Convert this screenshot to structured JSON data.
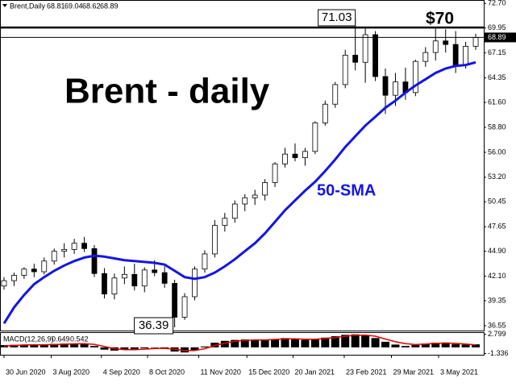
{
  "chart_data": {
    "type": "candlestick",
    "header": {
      "symbol": "Brent,Daily",
      "open": 68.81,
      "high": 69.04,
      "low": 68.62,
      "close": 68.89
    },
    "title": "Brent - daily",
    "open": [
      41.0,
      41.6,
      42.2,
      42.9,
      42.6,
      43.8,
      44.9,
      45.1,
      45.8,
      45.2,
      42.4,
      40.1,
      41.9,
      42.3,
      41.0,
      42.8,
      42.5,
      41.3,
      37.5,
      39.8,
      42.9,
      44.6,
      47.8,
      48.6,
      50.2,
      50.9,
      51.2,
      52.6,
      54.7,
      55.8,
      55.4,
      56.1,
      59.3,
      61.4,
      63.6,
      66.9,
      66.1,
      69.2,
      64.5,
      62.4,
      63.9,
      62.7,
      66.2,
      67.2,
      68.5,
      68.1,
      65.8,
      67.9
    ],
    "high": [
      42.0,
      42.5,
      43.1,
      43.5,
      44.2,
      45.2,
      45.8,
      46.3,
      46.5,
      45.6,
      43.0,
      42.4,
      43.2,
      43.5,
      43.1,
      43.9,
      43.2,
      41.7,
      40.2,
      43.2,
      45.0,
      48.4,
      49.2,
      50.6,
      51.3,
      51.8,
      53.0,
      54.9,
      56.5,
      57.0,
      56.5,
      59.5,
      61.8,
      63.9,
      67.5,
      71.03,
      70.0,
      69.6,
      65.4,
      64.9,
      65.5,
      66.4,
      67.8,
      69.9,
      69.8,
      69.6,
      68.4,
      69.3
    ],
    "low": [
      40.6,
      41.0,
      41.8,
      42.0,
      42.3,
      43.4,
      44.2,
      44.6,
      44.8,
      42.0,
      39.6,
      39.5,
      41.2,
      40.5,
      40.3,
      42.1,
      40.8,
      36.39,
      37.2,
      39.4,
      42.5,
      44.2,
      47.1,
      48.1,
      49.4,
      50.1,
      50.6,
      52.1,
      54.3,
      55.0,
      54.5,
      55.8,
      59.0,
      61.0,
      63.2,
      65.2,
      63.8,
      64.0,
      60.3,
      61.2,
      61.9,
      62.3,
      65.6,
      66.3,
      67.2,
      64.9,
      65.4,
      67.5
    ],
    "close": [
      41.6,
      42.2,
      42.9,
      42.6,
      43.8,
      44.9,
      45.1,
      45.8,
      45.2,
      42.4,
      40.1,
      41.9,
      42.3,
      41.0,
      42.8,
      42.5,
      41.3,
      37.5,
      39.8,
      42.9,
      44.6,
      47.8,
      48.6,
      50.2,
      50.9,
      51.2,
      52.6,
      54.7,
      55.8,
      55.4,
      56.1,
      59.3,
      61.4,
      63.6,
      66.9,
      66.1,
      69.2,
      64.5,
      62.4,
      63.9,
      62.7,
      66.2,
      67.2,
      68.5,
      68.1,
      65.8,
      67.9,
      68.89
    ],
    "sma": {
      "name": "50-SMA",
      "color": "#1414e6",
      "values": [
        36.8,
        38.6,
        40.0,
        41.2,
        42.0,
        42.7,
        43.3,
        43.8,
        44.2,
        44.4,
        44.3,
        44.1,
        43.9,
        43.8,
        43.7,
        43.6,
        43.4,
        42.7,
        42.0,
        41.8,
        42.0,
        42.5,
        43.2,
        44.0,
        44.9,
        45.8,
        46.9,
        48.2,
        49.5,
        50.6,
        51.7,
        52.7,
        53.9,
        55.2,
        56.6,
        57.8,
        59.0,
        60.0,
        61.0,
        61.8,
        62.7,
        63.5,
        64.2,
        64.9,
        65.4,
        65.7,
        65.8,
        66.1
      ]
    },
    "level": {
      "value": 70,
      "label": "$70"
    },
    "peak": 71.03,
    "trough": 36.39,
    "xlim": [
      -0.4,
      47.8
    ],
    "xticks": [
      {
        "value": 0,
        "label": "30 Jun 2020"
      },
      {
        "value": 4.7,
        "label": "3 Aug 2020"
      },
      {
        "value": 9.7,
        "label": "4 Sep 2020"
      },
      {
        "value": 14.3,
        "label": "8 Oct 2020"
      },
      {
        "value": 19.4,
        "label": "11 Nov 2020"
      },
      {
        "value": 24.2,
        "label": "15 Dec 2020"
      },
      {
        "value": 28.8,
        "label": "20 Jan 2021"
      },
      {
        "value": 33.9,
        "label": "23 Feb 2021"
      },
      {
        "value": 38.6,
        "label": "29 Mar 2021"
      },
      {
        "value": 43.3,
        "label": "3 May 2021"
      }
    ],
    "ylim": [
      36.0,
      73.0
    ],
    "yticks": [
      {
        "value": 72.7,
        "label": "72.70"
      },
      69.95,
      67.15,
      64.35,
      {
        "value": 61.6,
        "label": "61.60"
      },
      {
        "value": 58.8,
        "label": "58.80"
      },
      {
        "value": 56,
        "label": "56.00"
      },
      {
        "value": 53.2,
        "label": "53.20"
      },
      50.45,
      47.65,
      {
        "value": 44.9,
        "label": "44.90"
      },
      {
        "value": 42.1,
        "label": "42.10"
      },
      39.35,
      36.55
    ],
    "macd": {
      "title": "MACD(12,26,9)",
      "color": "#000000",
      "histogram": [
        0.5,
        0.55,
        0.6,
        0.55,
        0.6,
        0.75,
        0.8,
        0.85,
        0.8,
        0.3,
        -0.5,
        -0.7,
        -0.5,
        -0.4,
        -0.2,
        0.0,
        -0.2,
        -0.9,
        -1.1,
        -0.6,
        0.2,
        1.0,
        1.4,
        1.6,
        1.7,
        1.6,
        1.6,
        1.8,
        2.0,
        1.8,
        1.6,
        1.8,
        2.1,
        2.4,
        2.7,
        2.8,
        2.6,
        2.0,
        1.2,
        0.6,
        0.3,
        0.5,
        0.8,
        1.0,
        1.0,
        0.7,
        0.6,
        0.649
      ],
      "signal": {
        "color": "#e00000",
        "values": [
          0.3,
          0.4,
          0.5,
          0.55,
          0.56,
          0.6,
          0.68,
          0.75,
          0.8,
          0.65,
          0.2,
          -0.3,
          -0.5,
          -0.5,
          -0.4,
          -0.25,
          -0.2,
          -0.4,
          -0.7,
          -0.7,
          -0.3,
          0.4,
          0.9,
          1.3,
          1.5,
          1.6,
          1.6,
          1.7,
          1.85,
          1.85,
          1.75,
          1.75,
          1.9,
          2.1,
          2.4,
          2.6,
          2.65,
          2.4,
          1.8,
          1.2,
          0.8,
          0.6,
          0.7,
          0.85,
          0.95,
          0.85,
          0.7,
          0.542
        ]
      },
      "ylim": [
        -1.6,
        3.1
      ],
      "yticks": [
        2.799,
        -1.336
      ]
    }
  }
}
